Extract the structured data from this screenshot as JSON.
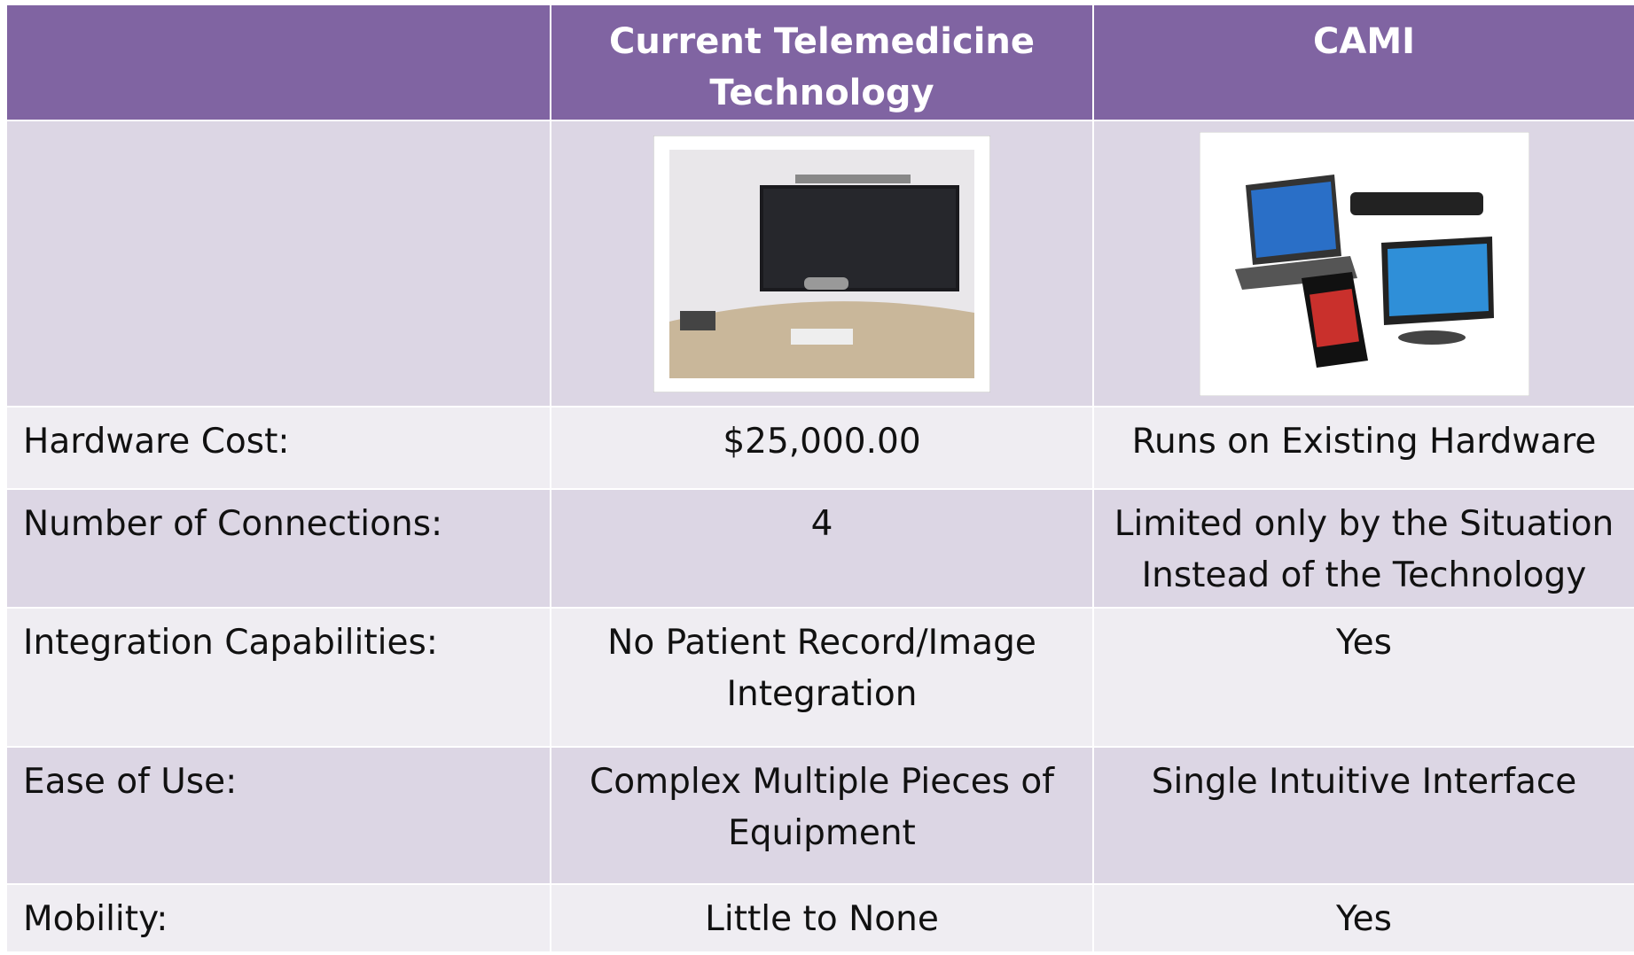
{
  "table": {
    "header": [
      "",
      "Current Telemedicine Technology",
      "CAMI"
    ],
    "rows": [
      [
        "Hardware Cost:",
        "$25,000.00",
        "Runs on Existing Hardware"
      ],
      [
        "Number of Connections:",
        "4",
        "Limited only  by the Situation Instead of the Technology"
      ],
      [
        "Integration Capabilities:",
        "No Patient Record/Image Integration",
        "Yes"
      ],
      [
        "Ease of Use:",
        "Complex Multiple Pieces of Equipment",
        "Single Intuitive Interface"
      ],
      [
        "Mobility:",
        "Little to None",
        "Yes"
      ]
    ]
  }
}
